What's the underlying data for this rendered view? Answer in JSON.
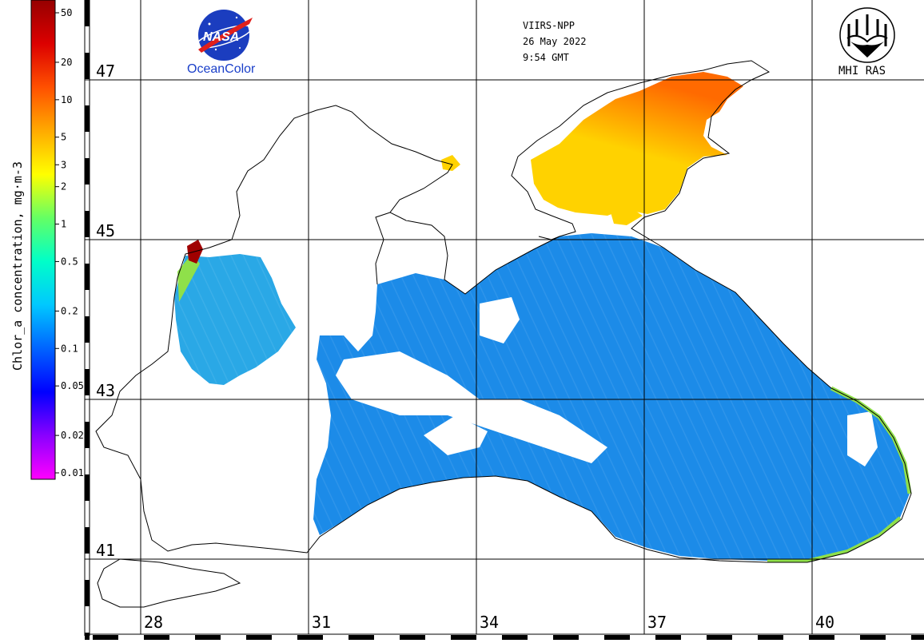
{
  "header": {
    "satellite": "VIIRS-NPP",
    "date": "26 May 2022",
    "time": "9:54 GMT"
  },
  "logos": {
    "left": {
      "icon": "nasa-meatball-icon",
      "word": "NASA",
      "subtitle": "OceanColor"
    },
    "right": {
      "icon": "mhi-ras-emblem-icon",
      "word": "MHI RAS"
    }
  },
  "colorbar": {
    "title": "Chlor_a concentration, mg·m-3",
    "ticks": [
      "50",
      "20",
      "10",
      "5",
      "3",
      "2",
      "1",
      "0.5",
      "0.2",
      "0.1",
      "0.05",
      "0.02",
      "0.01"
    ],
    "colors": [
      "#ff00ff",
      "#8a00ff",
      "#0000ff",
      "#0064ff",
      "#00c8ff",
      "#00ffc8",
      "#64ff64",
      "#ffff00",
      "#ffaa00",
      "#ff5000",
      "#dc0000",
      "#960000"
    ]
  },
  "grid": {
    "latitudes": [
      "47",
      "45",
      "43",
      "41"
    ],
    "longitudes": [
      "28",
      "31",
      "34",
      "37",
      "40"
    ]
  },
  "palette": {
    "land": "#ffffff",
    "coast": "#000000",
    "open_sea": "#1c8be8",
    "shelf_sea": "#2aa8e6",
    "azov": "#ffd200",
    "azov_high": "#ff6a00",
    "estuary": "#a00000",
    "coastal_band": "#8fe04a"
  }
}
